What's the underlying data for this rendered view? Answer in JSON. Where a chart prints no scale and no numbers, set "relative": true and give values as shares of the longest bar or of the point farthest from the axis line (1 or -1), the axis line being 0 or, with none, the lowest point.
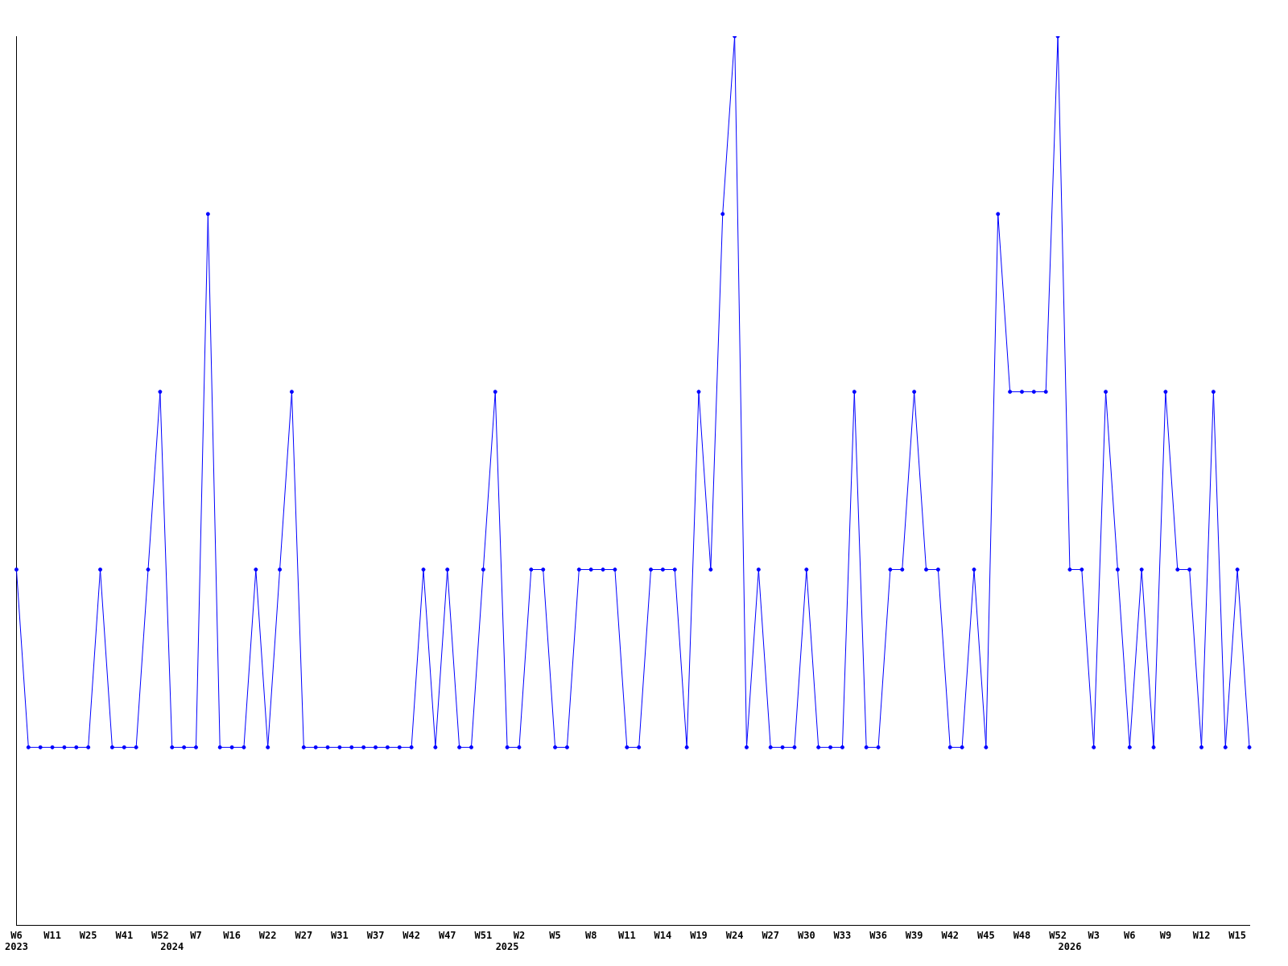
{
  "chart_data": {
    "type": "line",
    "relative": true,
    "marker": "circle",
    "grid": false,
    "legend": false,
    "categories": [
      "W6\n2023",
      null,
      null,
      "W11",
      null,
      null,
      "W25",
      null,
      null,
      "W41",
      null,
      null,
      "W52",
      "\n2024",
      null,
      "W7",
      null,
      null,
      "W16",
      null,
      null,
      "W22",
      null,
      null,
      "W27",
      null,
      null,
      "W31",
      null,
      null,
      "W37",
      null,
      null,
      "W42",
      null,
      null,
      "W47",
      null,
      null,
      "W51",
      null,
      "\n2025",
      "W2",
      null,
      null,
      "W5",
      null,
      null,
      "W8",
      null,
      null,
      "W11",
      null,
      null,
      "W14",
      null,
      null,
      "W19",
      null,
      null,
      "W24",
      null,
      null,
      "W27",
      null,
      null,
      "W30",
      null,
      null,
      "W33",
      null,
      null,
      "W36",
      null,
      null,
      "W39",
      null,
      null,
      "W42",
      null,
      null,
      "W45",
      null,
      null,
      "W48",
      null,
      null,
      "W52",
      "\n2026",
      null,
      "W3",
      null,
      null,
      "W6",
      null,
      null,
      "W9",
      null,
      null,
      "W12",
      null,
      null,
      "W15",
      null
    ],
    "series": [
      {
        "color": "#0000ff",
        "values": [
          0.4,
          0.2,
          0.2,
          0.2,
          0.2,
          0.2,
          0.2,
          0.4,
          0.2,
          0.2,
          0.2,
          0.4,
          0.6,
          0.2,
          0.2,
          0.2,
          0.8,
          0.2,
          0.2,
          0.2,
          0.4,
          0.2,
          0.4,
          0.6,
          0.2,
          0.2,
          0.2,
          0.2,
          0.2,
          0.2,
          0.2,
          0.2,
          0.2,
          0.2,
          0.4,
          0.2,
          0.4,
          0.2,
          0.2,
          0.4,
          0.6,
          0.2,
          0.2,
          0.4,
          0.4,
          0.2,
          0.2,
          0.4,
          0.4,
          0.4,
          0.4,
          0.2,
          0.2,
          0.4,
          0.4,
          0.4,
          0.2,
          0.6,
          0.4,
          0.8,
          1,
          0.2,
          0.4,
          0.2,
          0.2,
          0.2,
          0.4,
          0.2,
          0.2,
          0.2,
          0.6,
          0.2,
          0.2,
          0.4,
          0.4,
          0.6,
          0.4,
          0.4,
          0.2,
          0.2,
          0.4,
          0.2,
          0.8,
          0.6,
          0.6,
          0.6,
          0.6,
          1,
          0.4,
          0.4,
          0.2,
          0.6,
          0.4,
          0.2,
          0.4,
          0.2,
          0.6,
          0.4,
          0.4,
          0.2,
          0.6,
          0.2,
          0.4,
          0.2
        ]
      }
    ]
  }
}
